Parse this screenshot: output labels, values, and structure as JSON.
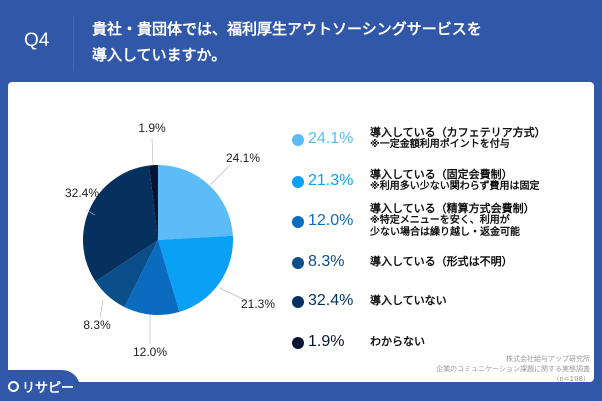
{
  "header": {
    "question_number": "Q4",
    "question_line1": "貴社・貴団体では、福利厚生アウトソーシングサービスを",
    "question_line2": "導入していますか。"
  },
  "chart_data": {
    "type": "pie",
    "start": "top",
    "direction": "clockwise",
    "slices": [
      {
        "value": 24.1,
        "label": "24.1%",
        "color": "#5bbcf8",
        "legend": "導入している（カフェテリア方式）",
        "note": "※一定金額利用ポイントを付与"
      },
      {
        "value": 21.3,
        "label": "21.3%",
        "color": "#0aa0f5",
        "legend": "導入している（固定会費制）",
        "note": "※利用多い少ない関わらず費用は固定"
      },
      {
        "value": 12.0,
        "label": "12.0%",
        "color": "#0a6bbf",
        "legend": "導入している（精算方式会費制）",
        "note": "※特定メニューを安く、利用が",
        "note2": "少ない場合は繰り越し・返金可能"
      },
      {
        "value": 8.3,
        "label": "8.3%",
        "color": "#0a4e8a",
        "legend": "導入している（形式は不明）"
      },
      {
        "value": 32.4,
        "label": "32.4%",
        "color": "#06305e",
        "legend": "導入していない"
      },
      {
        "value": 1.9,
        "label": "1.9%",
        "color": "#041533",
        "legend": "わからない"
      }
    ]
  },
  "source": {
    "line1": "株式会社給与アップ研究所",
    "line2": "企業のコミュニケーション課題に関する実態調査",
    "line3": "（n=108）"
  },
  "logo": {
    "text": "リサピー"
  }
}
